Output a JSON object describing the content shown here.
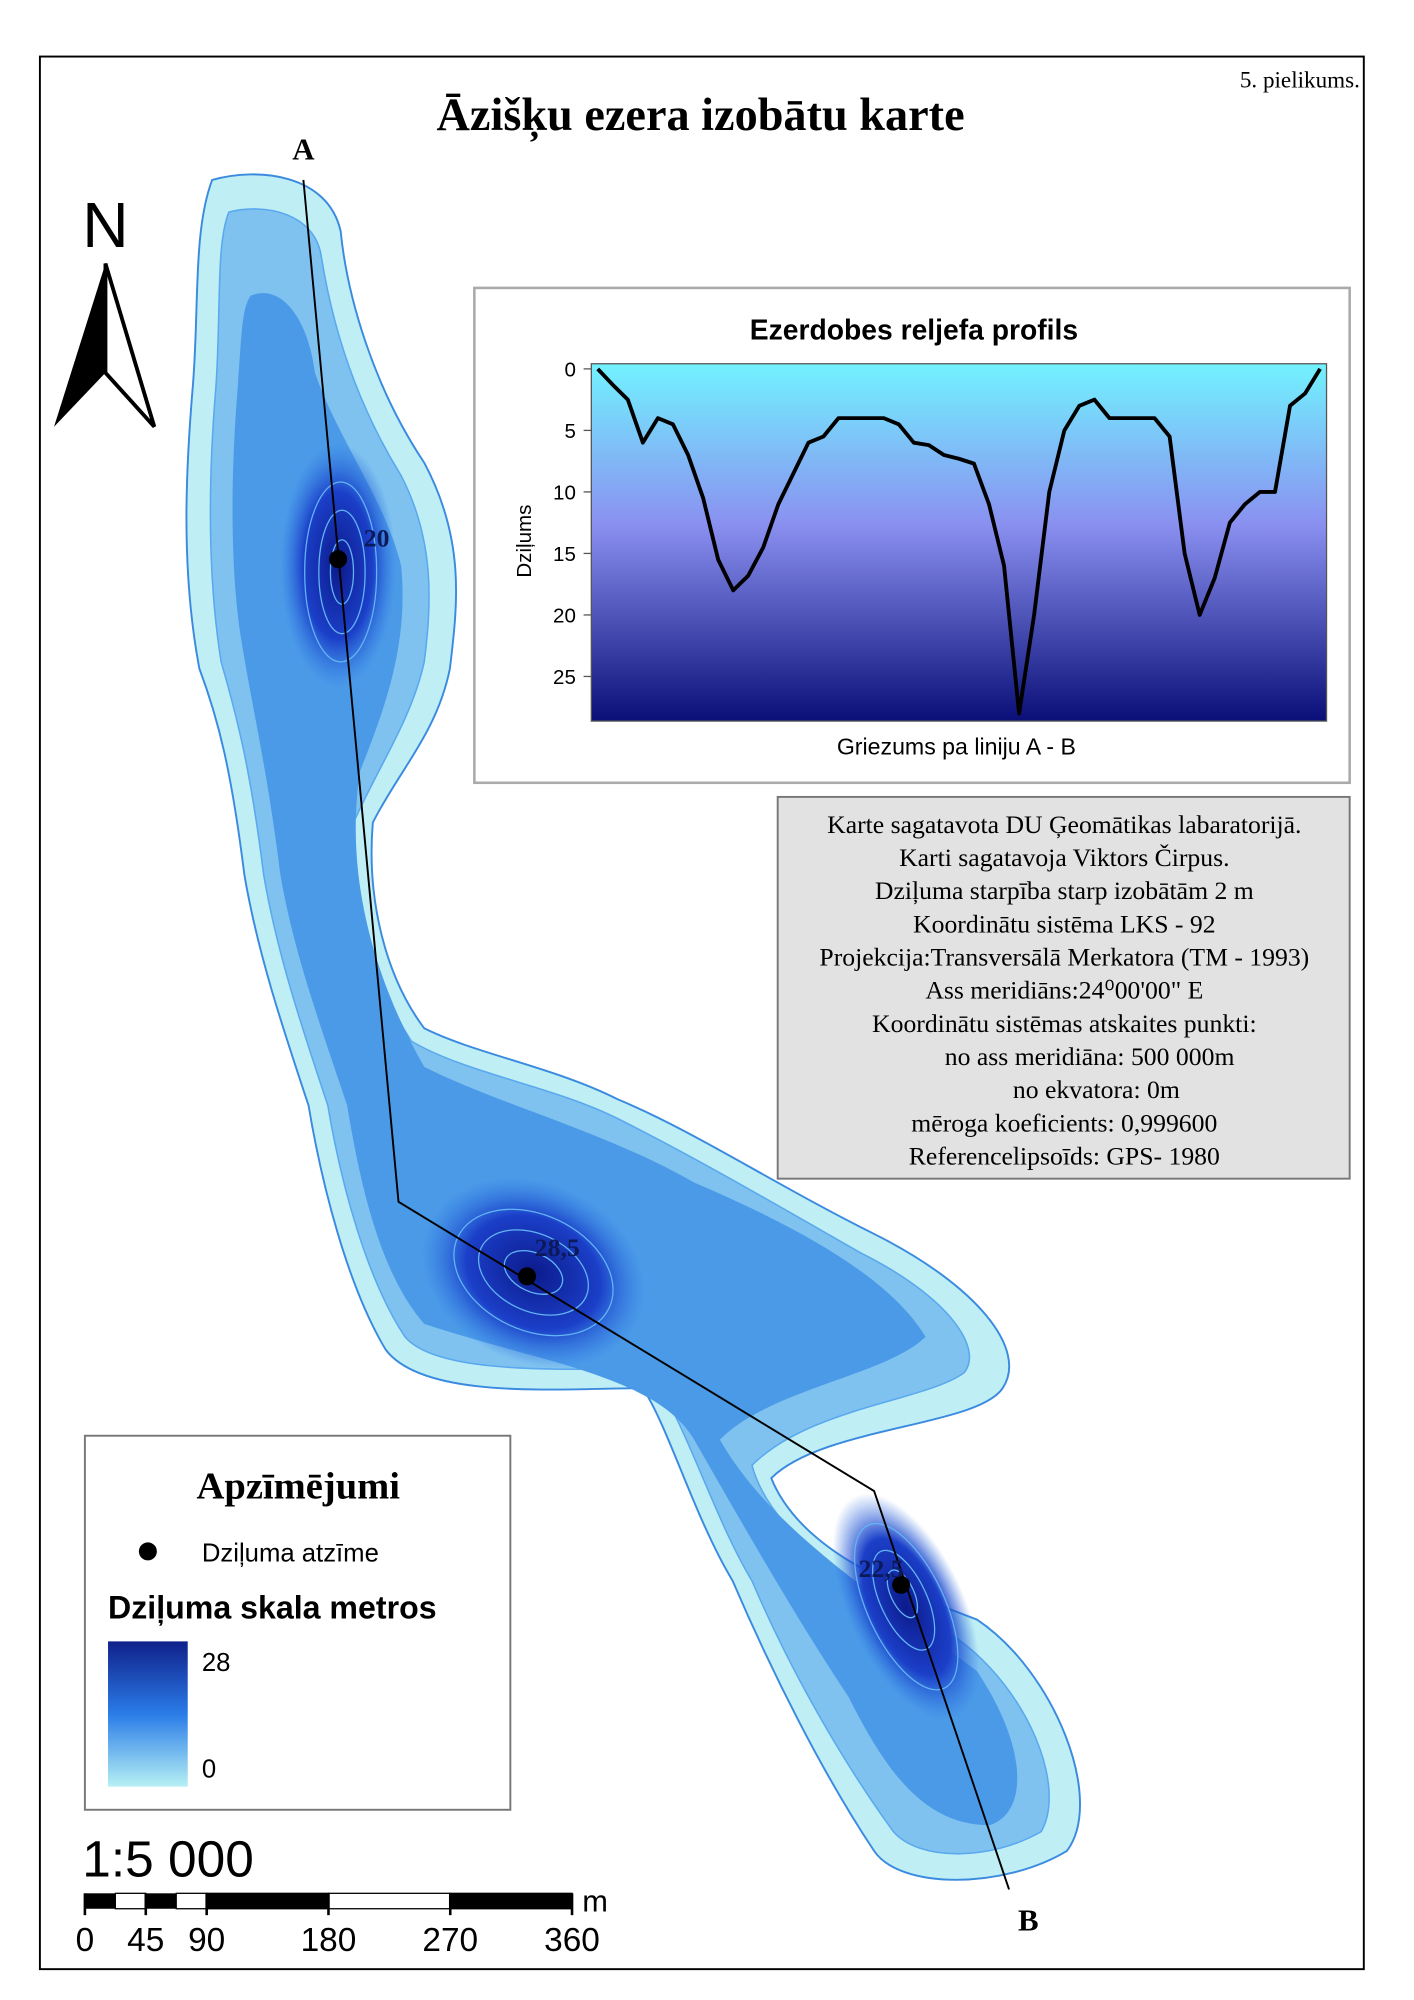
{
  "note": "5. pielikums.",
  "title": "Āzišķu ezera izobātu karte",
  "north": "N",
  "section_ends": [
    "A",
    "B"
  ],
  "depth_marks": [
    "20",
    "28,5",
    "22,5"
  ],
  "chart_data": {
    "type": "line",
    "title": "Ezerdobes reljefa profils",
    "y_label": "Dziļums",
    "x_label": "Griezums pa liniju A - B",
    "values": [
      0,
      1.3,
      2.5,
      6,
      4,
      4.5,
      7,
      10.5,
      15.5,
      18,
      16.8,
      14.5,
      11,
      8.5,
      6,
      5.5,
      4,
      4,
      4,
      4,
      4.5,
      6,
      6.2,
      7,
      7.3,
      7.7,
      11,
      16,
      28,
      20,
      10,
      5,
      3,
      2.5,
      4,
      4,
      4,
      4,
      5.5,
      15,
      20,
      17,
      12.5,
      11,
      10,
      10,
      3,
      2,
      0
    ],
    "color": "#000000",
    "ylim": [
      0,
      28
    ],
    "yticks": [
      0,
      5,
      10,
      15,
      20,
      25
    ],
    "y_inverted": true
  },
  "info": [
    "Karte sagatavota DU Ģeomātikas labaratorijā.",
    "Karti sagatavoja Viktors Čirpus.",
    "Dziļuma starpība starp izobātām 2 m",
    "Koordinātu sistēma LKS - 92",
    "Projekcija:Transversālā Merkatora (TM - 1993)",
    "Ass meridiāns:24⁰00'00\" E",
    "Koordinātu sistēmas atskaites punkti:",
    "no ass meridiāna: 500 000m",
    "no ekvatora: 0m",
    "mēroga koeficients: 0,999600",
    "Referencelipsoīds: GPS- 1980"
  ],
  "legend": {
    "title": "Apzīmējumi",
    "point": "Dziļuma atzīme",
    "scale_title": "Dziļuma skala metros",
    "scale_max": "28",
    "scale_min": "0"
  },
  "scale": {
    "ratio": "1:5 000",
    "unit": "m",
    "ticks": [
      0,
      45,
      90,
      180,
      270,
      360
    ]
  }
}
